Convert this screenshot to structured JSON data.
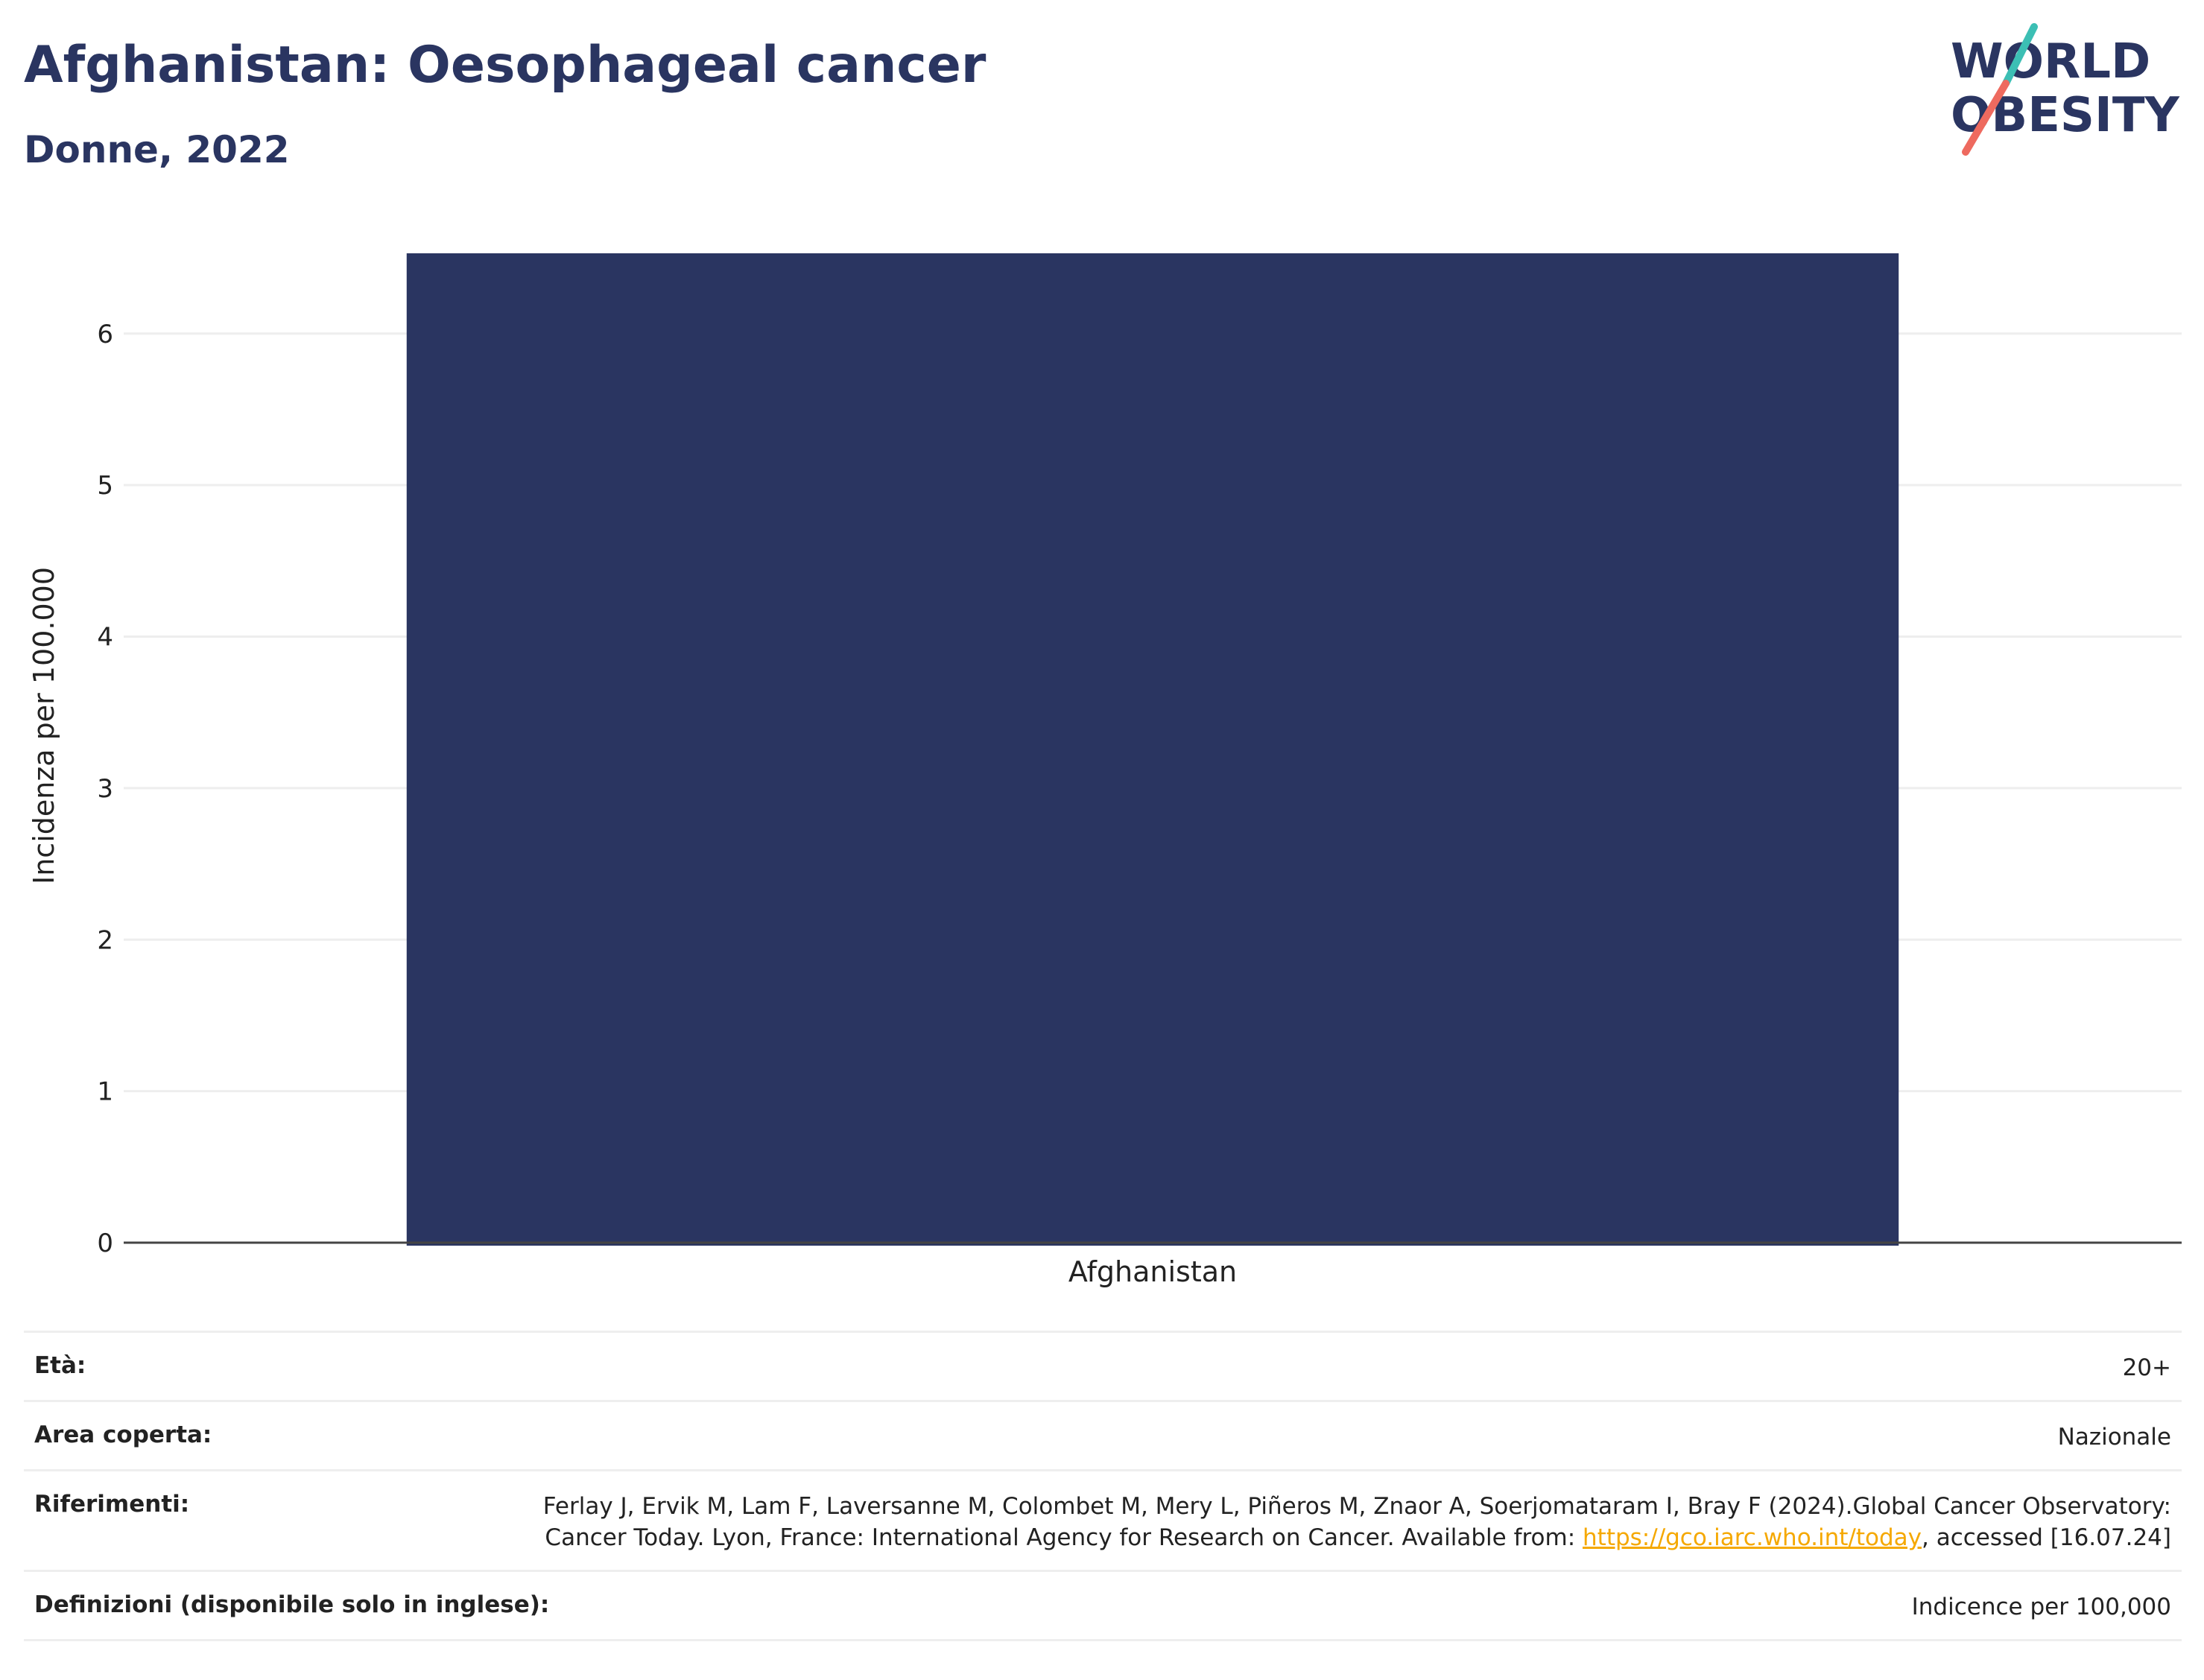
{
  "header": {
    "title": "Afghanistan: Oesophageal cancer",
    "subtitle": "Donne, 2022"
  },
  "logo": {
    "line1": "WORLD",
    "line2": "OBESITY",
    "colors": {
      "text": "#2a3561",
      "slash_top": "#3cbfb4",
      "slash_bottom": "#ee6a5f"
    }
  },
  "chart_data": {
    "type": "bar",
    "categories": [
      "Afghanistan"
    ],
    "values": [
      6.53
    ],
    "ylabel": "Incidenza per 100.000",
    "xlabel": "",
    "ylim": [
      0,
      6.53
    ],
    "yticks": [
      "0",
      "1",
      "2",
      "3",
      "4",
      "5",
      "6"
    ],
    "grid": true,
    "bar_color": "#2a3561"
  },
  "details": {
    "age_label": "Età:",
    "age_value": "20+",
    "area_label": "Area coperta:",
    "area_value": "Nazionale",
    "references_label": "Riferimenti:",
    "references_text": "Ferlay J, Ervik M, Lam F, Laversanne M, Colombet M, Mery L, Piñeros M, Znaor A, Soerjomataram I, Bray F (2024).Global Cancer Observatory: Cancer Today. Lyon, France: International Agency for Research on Cancer. Available from: ",
    "references_link": "https://gco.iarc.who.int/today",
    "references_suffix": ", accessed [16.07.24]",
    "definitions_label": "Definizioni (disponibile solo in inglese):",
    "definitions_value": "Indicence per 100,000"
  },
  "colors": {
    "link": "#f5a800",
    "grid": "#eeeeee",
    "axis": "#444444"
  }
}
